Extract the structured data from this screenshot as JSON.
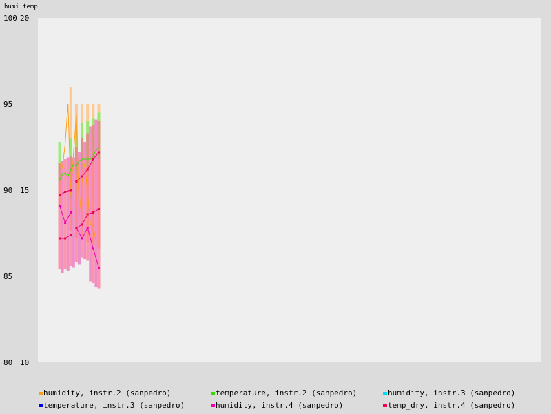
{
  "chart_data": {
    "type": "line",
    "axis_header": "humi temp",
    "left_axis": {
      "label": "humi",
      "range": [
        80,
        100
      ],
      "ticks": [
        "100",
        "95",
        "90",
        "85",
        "80"
      ]
    },
    "right_axis": {
      "label": "temp",
      "range": [
        10,
        20
      ],
      "ticks": [
        "20",
        "15",
        "10"
      ]
    },
    "grid": false,
    "legend_position": "bottom",
    "legend": [
      {
        "label": "humidity, instr.2 (sanpedro)",
        "color": "#ff9f1a"
      },
      {
        "label": "temperature, instr.2 (sanpedro)",
        "color": "#33dd00"
      },
      {
        "label": "humidity, instr.3 (sanpedro)",
        "color": "#00ddee"
      },
      {
        "label": "temperature, instr.3 (sanpedro)",
        "color": "#0000ee"
      },
      {
        "label": "humidity, instr.4 (sanpedro)",
        "color": "#ee00aa"
      },
      {
        "label": "temp_dry, instr.4 (sanpedro)",
        "color": "#ee0055"
      }
    ],
    "x_index": [
      0,
      1,
      2,
      3,
      4,
      5,
      6,
      7,
      8,
      9,
      10,
      11,
      12,
      13,
      14,
      15,
      16,
      17,
      18,
      19,
      20,
      21,
      22,
      23,
      24,
      25,
      26,
      27,
      28,
      29
    ],
    "range_bars": [
      {
        "series": "humidity, instr.2 (sanpedro)",
        "axis": "left",
        "color": "#ffc07a",
        "opacity": 0.8,
        "x": [
          0,
          4,
          6,
          8,
          10,
          12,
          14
        ],
        "low": [
          89.0,
          87.6,
          87.2,
          87.2,
          87.0,
          86.8,
          86.6
        ],
        "high": [
          91.5,
          96.0,
          95.0,
          95.0,
          95.0,
          95.0,
          95.0
        ]
      },
      {
        "series": "temperature, instr.2 (sanpedro)",
        "axis": "left",
        "color": "#88ee66",
        "opacity": 0.85,
        "x": [
          0,
          4,
          6,
          8,
          10,
          12,
          14
        ],
        "low": [
          90.5,
          89.5,
          91.0,
          91.2,
          91.3,
          91.6,
          91.8
        ],
        "high": [
          92.8,
          93.0,
          93.5,
          93.9,
          94.0,
          94.2,
          94.5
        ]
      },
      {
        "series": "humidity, instr.4 (sanpedro)",
        "axis": "left",
        "color": "#ee66bb",
        "opacity": 0.7,
        "x": [
          1,
          3,
          5,
          7,
          9,
          11,
          13
        ],
        "low": [
          85.2,
          85.3,
          85.5,
          85.7,
          86.0,
          84.7,
          84.4
        ],
        "high": [
          91.7,
          91.9,
          91.9,
          92.2,
          92.8,
          93.7,
          94.1
        ]
      },
      {
        "series": "temp_dry, instr.4 (sanpedro)",
        "axis": "left",
        "color": "#ff6688",
        "opacity": 0.65,
        "x": [
          0,
          2,
          4,
          6,
          8,
          10,
          12,
          14
        ],
        "low": [
          85.4,
          85.4,
          85.6,
          85.8,
          86.1,
          85.9,
          84.6,
          84.3
        ],
        "high": [
          91.6,
          91.8,
          92.0,
          92.5,
          93.0,
          93.3,
          93.8,
          94.0
        ]
      }
    ],
    "series": [
      {
        "name": "humidity, instr.2 (sanpedro)",
        "axis": "left",
        "color": "#ff9f1a",
        "marker": false,
        "segments": [
          {
            "x": [
              0,
              1,
              2,
              3,
              4,
              5,
              6,
              7,
              8,
              9,
              10,
              11,
              12,
              13,
              14
            ],
            "y": [
              91.6,
              91.3,
              92.7,
              95.0,
              89.7,
              92.2,
              94.4,
              88.5,
              90.5,
              91.6,
              89.8,
              88.0,
              87.9,
              87.0,
              87.0
            ]
          }
        ]
      },
      {
        "name": "temperature, instr.2 (sanpedro)",
        "axis": "left",
        "color": "#33dd00",
        "marker": false,
        "segments": [
          {
            "x": [
              0,
              1,
              2,
              3,
              4,
              5,
              6,
              7,
              8,
              9,
              10,
              11,
              12,
              13,
              14
            ],
            "y": [
              90.6,
              90.9,
              91.0,
              90.8,
              91.2,
              91.5,
              91.4,
              91.7,
              91.8,
              91.8,
              91.8,
              91.8,
              92.0,
              92.3,
              92.5
            ]
          }
        ]
      },
      {
        "name": "humidity, instr.4 (sanpedro)",
        "axis": "left",
        "color": "#ee00aa",
        "marker": true,
        "segments": [
          {
            "x": [
              0,
              2,
              4
            ],
            "y": [
              89.1,
              88.1,
              88.7
            ]
          },
          {
            "x": [
              6,
              8,
              10,
              12,
              14
            ],
            "y": [
              87.8,
              87.2,
              87.8,
              86.6,
              85.5
            ]
          }
        ]
      },
      {
        "name": "temp_dry, instr.4 (sanpedro)",
        "axis": "left",
        "color": "#ee0055",
        "marker": true,
        "segments": [
          {
            "x": [
              0,
              2,
              4
            ],
            "y": [
              89.7,
              89.9,
              90.0
            ]
          },
          {
            "x": [
              6,
              8,
              10,
              12,
              14
            ],
            "y": [
              90.5,
              90.8,
              91.2,
              91.8,
              92.2
            ]
          },
          {
            "x": [
              0,
              2,
              4
            ],
            "y": [
              87.2,
              87.2,
              87.4
            ]
          },
          {
            "x": [
              6,
              8,
              10,
              12,
              14
            ],
            "y": [
              87.8,
              88.0,
              88.6,
              88.7,
              88.9
            ]
          }
        ]
      }
    ]
  }
}
